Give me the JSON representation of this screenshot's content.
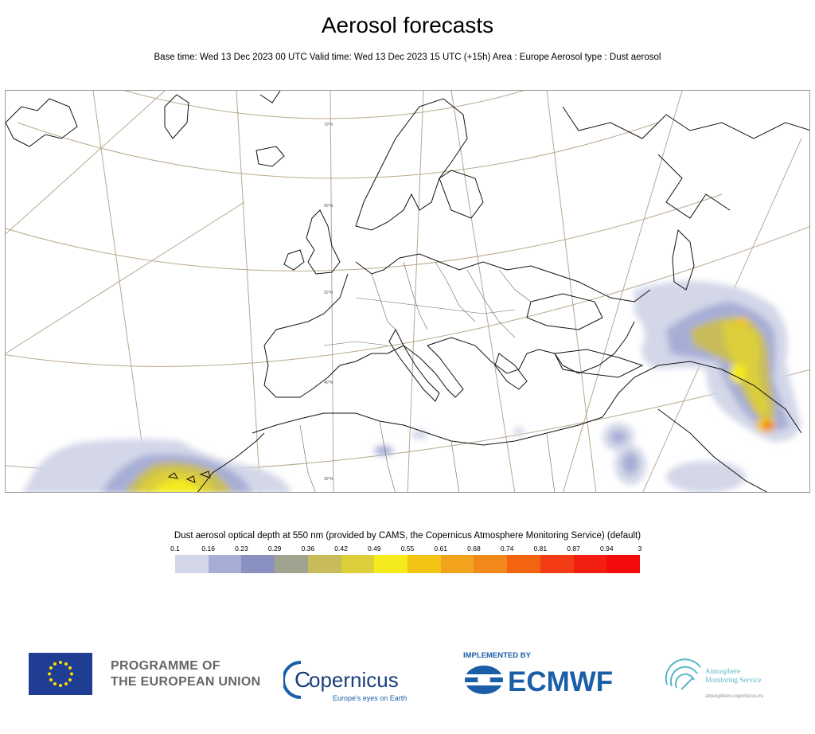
{
  "header": {
    "title": "Aerosol forecasts",
    "subtitle": "Base time: Wed 13 Dec 2023 00 UTC Valid time: Wed 13 Dec 2023 15 UTC (+15h) Area : Europe Aerosol type : Dust aerosol"
  },
  "map": {
    "lat_labels": [
      "70°N",
      "60°N",
      "50°N",
      "40°N",
      "30°N"
    ]
  },
  "legend": {
    "title": "Dust aerosol optical depth at 550 nm (provided by CAMS, the Copernicus Atmosphere Monitoring Service) (default)",
    "ticks": [
      "0.1",
      "0.16",
      "0.23",
      "0.29",
      "0.36",
      "0.42",
      "0.49",
      "0.55",
      "0.61",
      "0.68",
      "0.74",
      "0.81",
      "0.87",
      "0.94",
      "3"
    ],
    "colors": [
      "#d3d7e8",
      "#a7aed6",
      "#8891bf",
      "#9fa38f",
      "#c8bc5a",
      "#dccf3a",
      "#f5ea1c",
      "#f3c414",
      "#f2a31e",
      "#f2881a",
      "#f26410",
      "#f33c14",
      "#f31e12",
      "#f30a0a"
    ]
  },
  "footer": {
    "eu_line1": "PROGRAMME OF",
    "eu_line2": "THE EUROPEAN UNION",
    "copernicus": "opernicus",
    "copernicus_c": "C",
    "copernicus_tagline": "Europe's eyes on Earth",
    "implemented_by": "IMPLEMENTED BY",
    "ecmwf": "ECMWF",
    "cams_line1": "Atmosphere",
    "cams_line2": "Monitoring Service",
    "cams_url": "atmosphere.copernicus.eu"
  }
}
